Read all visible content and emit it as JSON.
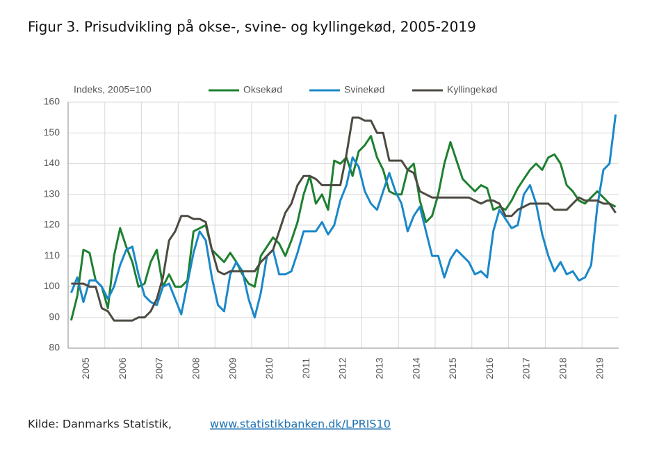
{
  "chart_data": {
    "type": "line",
    "title": "Figur 3. Prisudvikling på okse-, svine- og kyllingekød, 2005-2019",
    "y_label": "Indeks, 2005=100",
    "categories": [
      "2005",
      null,
      null,
      null,
      null,
      null,
      "2006",
      null,
      null,
      null,
      null,
      null,
      "2007",
      null,
      null,
      null,
      null,
      null,
      "2008",
      null,
      null,
      null,
      null,
      null,
      "2009",
      null,
      null,
      null,
      null,
      null,
      "2010",
      null,
      null,
      null,
      null,
      null,
      "2011",
      null,
      null,
      null,
      null,
      null,
      "2012",
      null,
      null,
      null,
      null,
      null,
      "2013",
      null,
      null,
      null,
      null,
      null,
      "2014",
      null,
      null,
      null,
      null,
      null,
      "2015",
      null,
      null,
      null,
      null,
      null,
      "2016",
      null,
      null,
      null,
      null,
      null,
      "2017",
      null,
      null,
      null,
      null,
      null,
      "2018",
      null,
      null,
      null,
      null,
      null,
      "2019",
      null,
      null,
      null,
      null,
      null
    ],
    "series": [
      {
        "name": "Oksekød",
        "color": "#1e8030",
        "values": [
          89,
          97,
          112,
          111,
          102,
          100,
          93,
          110,
          119,
          113,
          108,
          100,
          101,
          108,
          112,
          100,
          104,
          100,
          100,
          102,
          118,
          119,
          120,
          112,
          110,
          108,
          111,
          108,
          104,
          101,
          100,
          110,
          113,
          116,
          114,
          110,
          115,
          121,
          130,
          136,
          127,
          130,
          125,
          141,
          140,
          142,
          136,
          144,
          146,
          149,
          142,
          138,
          131,
          130,
          130,
          138,
          140,
          128,
          121,
          123,
          130,
          140,
          147,
          141,
          135,
          133,
          131,
          133,
          132,
          125,
          126,
          125,
          128,
          132,
          135,
          138,
          140,
          138,
          142,
          143,
          140,
          133,
          131,
          128,
          127,
          129,
          131,
          129,
          127,
          126
        ]
      },
      {
        "name": "Svinekød",
        "color": "#1a88c9",
        "values": [
          98,
          103,
          95,
          102,
          102,
          100,
          96,
          100,
          107,
          112,
          113,
          104,
          97,
          95,
          94,
          100,
          101,
          96,
          91,
          101,
          111,
          118,
          115,
          103,
          94,
          92,
          104,
          108,
          105,
          96,
          90,
          98,
          110,
          112,
          104,
          104,
          105,
          111,
          118,
          118,
          118,
          121,
          117,
          120,
          128,
          133,
          142,
          139,
          131,
          127,
          125,
          131,
          137,
          131,
          127,
          118,
          123,
          126,
          118,
          110,
          110,
          103,
          109,
          112,
          110,
          108,
          104,
          105,
          103,
          118,
          125,
          122,
          119,
          120,
          130,
          133,
          127,
          117,
          110,
          105,
          108,
          104,
          105,
          102,
          103,
          107,
          126,
          138,
          140,
          156
        ]
      },
      {
        "name": "Kyllingekød",
        "color": "#4d4a42",
        "values": [
          101,
          101,
          101,
          100,
          100,
          93,
          92,
          89,
          89,
          89,
          89,
          90,
          90,
          92,
          96,
          103,
          115,
          118,
          123,
          123,
          122,
          122,
          121,
          112,
          105,
          104,
          105,
          105,
          105,
          105,
          105,
          108,
          110,
          112,
          118,
          124,
          127,
          133,
          136,
          136,
          135,
          133,
          133,
          133,
          133,
          143,
          155,
          155,
          154,
          154,
          150,
          150,
          141,
          141,
          141,
          138,
          137,
          131,
          130,
          129,
          129,
          129,
          129,
          129,
          129,
          129,
          128,
          127,
          128,
          128,
          127,
          123,
          123,
          125,
          126,
          127,
          127,
          127,
          127,
          125,
          125,
          125,
          127,
          129,
          128,
          128,
          128,
          127,
          127,
          124
        ]
      }
    ],
    "ylim": [
      80,
      160
    ],
    "yticks": [
      80,
      90,
      100,
      110,
      120,
      130,
      140,
      150,
      160
    ],
    "grid": true,
    "legend": "top",
    "source": {
      "text": "Kilde: Danmarks Statistik,",
      "link": "www.statistikbanken.dk/LPRIS10"
    }
  }
}
